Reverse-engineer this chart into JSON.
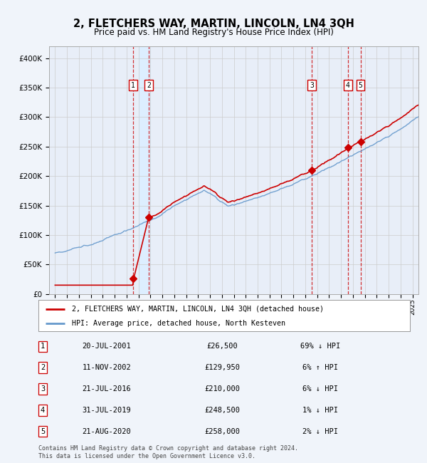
{
  "title": "2, FLETCHERS WAY, MARTIN, LINCOLN, LN4 3QH",
  "subtitle": "Price paid vs. HM Land Registry's House Price Index (HPI)",
  "legend_property": "2, FLETCHERS WAY, MARTIN, LINCOLN, LN4 3QH (detached house)",
  "legend_hpi": "HPI: Average price, detached house, North Kesteven",
  "footer": "Contains HM Land Registry data © Crown copyright and database right 2024.\nThis data is licensed under the Open Government Licence v3.0.",
  "sale_dates_num": [
    2001.55,
    2002.86,
    2016.55,
    2019.58,
    2020.64
  ],
  "sale_prices": [
    26500,
    129950,
    210000,
    248500,
    258000
  ],
  "sale_labels": [
    "1",
    "2",
    "3",
    "4",
    "5"
  ],
  "sale_info": [
    {
      "label": "1",
      "date": "20-JUL-2001",
      "price": "£26,500",
      "hpi": "69% ↓ HPI"
    },
    {
      "label": "2",
      "date": "11-NOV-2002",
      "price": "£129,950",
      "hpi": "6% ↑ HPI"
    },
    {
      "label": "3",
      "date": "21-JUL-2016",
      "price": "£210,000",
      "hpi": "6% ↓ HPI"
    },
    {
      "label": "4",
      "date": "31-JUL-2019",
      "price": "£248,500",
      "hpi": "1% ↓ HPI"
    },
    {
      "label": "5",
      "date": "21-AUG-2020",
      "price": "£258,000",
      "hpi": "2% ↓ HPI"
    }
  ],
  "highlight_region": [
    2002.0,
    2003.0
  ],
  "property_color": "#cc0000",
  "hpi_color": "#6699cc",
  "highlight_color": "#ddeeff",
  "vline_color": "#cc0000",
  "grid_color": "#cccccc",
  "bg_color": "#e8eef8",
  "ylim": [
    0,
    420000
  ],
  "yticks": [
    0,
    50000,
    100000,
    150000,
    200000,
    250000,
    300000,
    350000,
    400000
  ],
  "xlim": [
    1994.5,
    2025.5
  ],
  "xticks": [
    1995,
    1996,
    1997,
    1998,
    1999,
    2000,
    2001,
    2002,
    2003,
    2004,
    2005,
    2006,
    2007,
    2008,
    2009,
    2010,
    2011,
    2012,
    2013,
    2014,
    2015,
    2016,
    2017,
    2018,
    2019,
    2020,
    2021,
    2022,
    2023,
    2024,
    2025
  ]
}
